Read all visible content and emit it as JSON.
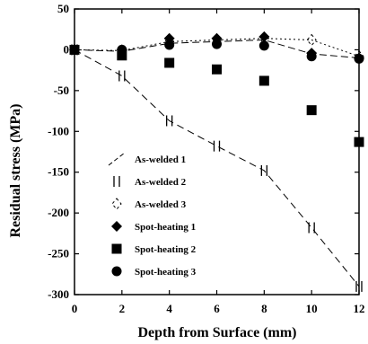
{
  "chart_data": {
    "type": "line",
    "xlabel": "Depth from Surface (mm)",
    "ylabel": "Residual stress (MPa)",
    "xlim": [
      0,
      12
    ],
    "ylim": [
      -300,
      50
    ],
    "xticks": [
      0,
      2,
      4,
      6,
      8,
      10,
      12
    ],
    "yticks": [
      50,
      0,
      -50,
      -100,
      -150,
      -200,
      -250,
      -300
    ],
    "grid": false,
    "legend_placement": "bottom-center",
    "series": [
      {
        "name": "As-welded 1",
        "marker": "none",
        "x": [
          0,
          2,
          4,
          6,
          8,
          10,
          12
        ],
        "y": [
          0,
          -2,
          8,
          10,
          12,
          -5,
          -10
        ]
      },
      {
        "name": "As-welded 2",
        "marker": "bar",
        "x": [
          0,
          2,
          4,
          6,
          8,
          10,
          12
        ],
        "y": [
          0,
          -32,
          -87,
          -118,
          -148,
          -218,
          -290
        ]
      },
      {
        "name": "As-welded 3",
        "marker": "open-diamond",
        "x": [
          0,
          2,
          4,
          6,
          8,
          10,
          12
        ],
        "y": [
          0,
          -1,
          10,
          12,
          14,
          12,
          -8
        ]
      },
      {
        "name": "Spot-heating 1",
        "marker": "filled-diamond",
        "x": [
          0,
          2,
          4,
          6,
          8,
          10,
          12
        ],
        "y": [
          0,
          0,
          14,
          14,
          16,
          -4,
          -10
        ]
      },
      {
        "name": "Spot-heating 2",
        "marker": "filled-square",
        "x": [
          0,
          2,
          4,
          6,
          8,
          10,
          12
        ],
        "y": [
          0,
          -7,
          -16,
          -24,
          -38,
          -74,
          -113
        ]
      },
      {
        "name": "Spot-heating 3",
        "marker": "filled-circle",
        "x": [
          0,
          2,
          4,
          6,
          8,
          10,
          12
        ],
        "y": [
          0,
          0,
          6,
          7,
          5,
          -8,
          -11
        ]
      }
    ]
  }
}
